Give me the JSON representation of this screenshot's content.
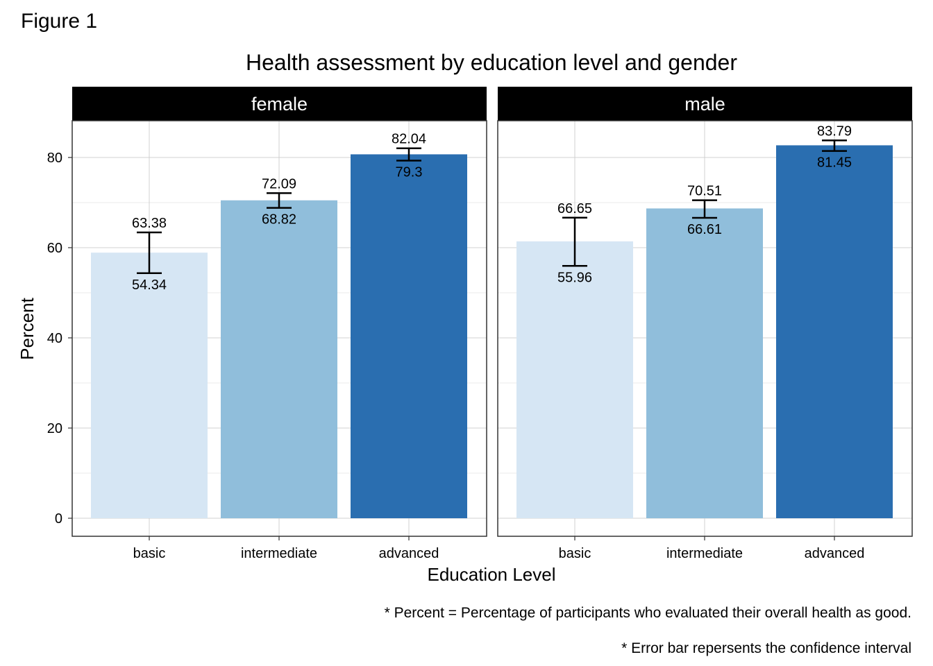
{
  "figure_label": "Figure 1",
  "caption_lines": [
    "* Percent = Percentage of participants who evaluated their overall health as good.",
    "* Error bar repersents the confidence interval"
  ],
  "chart_data": {
    "type": "bar",
    "title": "Health assessment by education level and gender",
    "xlabel": "Education Level",
    "ylabel": "Percent",
    "ylim": [
      0,
      88
    ],
    "yticks": [
      0,
      20,
      40,
      60,
      80
    ],
    "grid": true,
    "categories": [
      "basic",
      "intermediate",
      "advanced"
    ],
    "category_colors": [
      "#d6e6f4",
      "#90bedb",
      "#2a6eb0"
    ],
    "panels": [
      {
        "name": "female",
        "values": [
          58.9,
          70.5,
          80.7
        ],
        "ci_upper": [
          63.38,
          72.09,
          82.04
        ],
        "ci_lower": [
          54.34,
          68.82,
          79.3
        ],
        "upper_labels": [
          "63.38",
          "72.09",
          "82.04"
        ],
        "lower_labels": [
          "54.34",
          "68.82",
          "79.3"
        ]
      },
      {
        "name": "male",
        "values": [
          61.4,
          68.7,
          82.7
        ],
        "ci_upper": [
          66.65,
          70.51,
          83.79
        ],
        "ci_lower": [
          55.96,
          66.61,
          81.45
        ],
        "upper_labels": [
          "66.65",
          "70.51",
          "83.79"
        ],
        "lower_labels": [
          "55.96",
          "66.61",
          "81.45"
        ]
      }
    ]
  }
}
